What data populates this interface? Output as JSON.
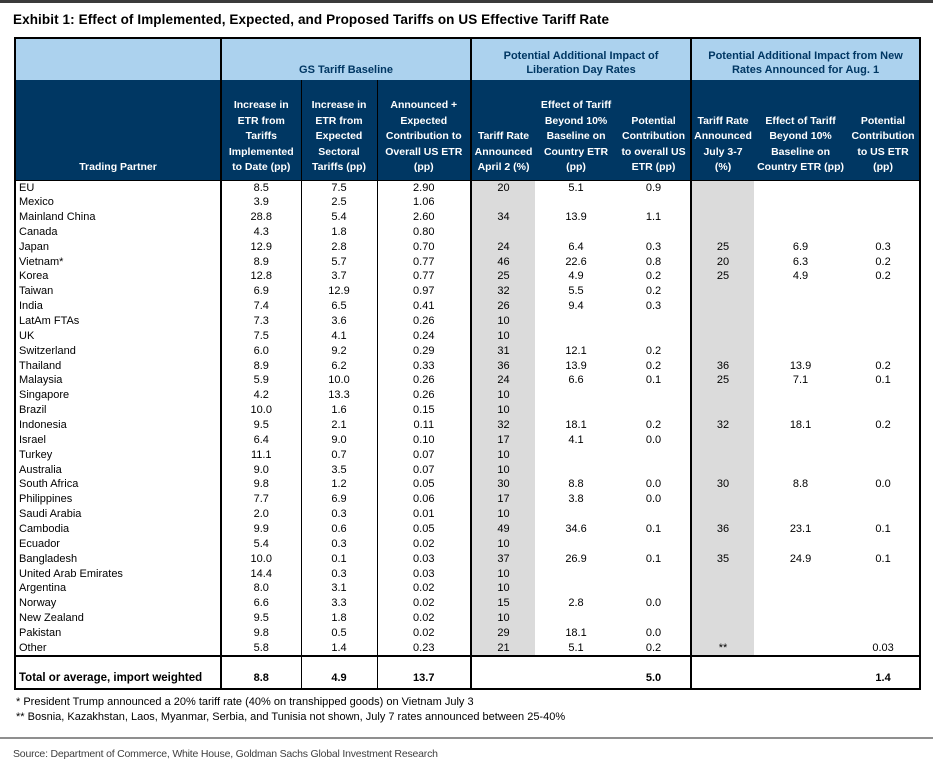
{
  "title": "Exhibit 1: Effect of Implemented, Expected, and Proposed Tariffs on US Effective Tariff Rate",
  "colors": {
    "header_navy": "#003763",
    "header_light_blue": "#acd2ee",
    "shaded_rate_column": "#dbdbdb"
  },
  "chart_data": {
    "type": "table",
    "title": "Exhibit 1: Effect of Implemented, Expected, and Proposed Tariffs on US Effective Tariff Rate",
    "column_groups": [
      "GS Tariff Baseline",
      "Potential Additional Impact of Liberation Day Rates",
      "Potential Additional Impact from New Rates Announced for Aug. 1"
    ],
    "columns": [
      "Trading Partner",
      "Increase in ETR from Tariffs Implemented to Date (pp)",
      "Increase in ETR from Expected Sectoral Tariffs (pp)",
      "Announced + Expected Contribution to Overall US ETR (pp)",
      "Tariff Rate Announced April 2 (%)",
      "Effect of Tariff Beyond 10% Baseline on Country ETR (pp)",
      "Potential Contribution to overall US ETR (pp)",
      "Tariff Rate Announced July 3-7 (%)",
      "Effect of Tariff Beyond 10% Baseline on Country ETR (pp)",
      "Potential Contribution to US ETR (pp)"
    ],
    "rows": [
      [
        "EU",
        "8.5",
        "7.5",
        "2.90",
        "20",
        "5.1",
        "0.9",
        "",
        "",
        ""
      ],
      [
        "Mexico",
        "3.9",
        "2.5",
        "1.06",
        "",
        "",
        "",
        "",
        "",
        ""
      ],
      [
        "Mainland China",
        "28.8",
        "5.4",
        "2.60",
        "34",
        "13.9",
        "1.1",
        "",
        "",
        ""
      ],
      [
        "Canada",
        "4.3",
        "1.8",
        "0.80",
        "",
        "",
        "",
        "",
        "",
        ""
      ],
      [
        "Japan",
        "12.9",
        "2.8",
        "0.70",
        "24",
        "6.4",
        "0.3",
        "25",
        "6.9",
        "0.3"
      ],
      [
        "Vietnam*",
        "8.9",
        "5.7",
        "0.77",
        "46",
        "22.6",
        "0.8",
        "20",
        "6.3",
        "0.2"
      ],
      [
        "Korea",
        "12.8",
        "3.7",
        "0.77",
        "25",
        "4.9",
        "0.2",
        "25",
        "4.9",
        "0.2"
      ],
      [
        "Taiwan",
        "6.9",
        "12.9",
        "0.97",
        "32",
        "5.5",
        "0.2",
        "",
        "",
        ""
      ],
      [
        "India",
        "7.4",
        "6.5",
        "0.41",
        "26",
        "9.4",
        "0.3",
        "",
        "",
        ""
      ],
      [
        "LatAm FTAs",
        "7.3",
        "3.6",
        "0.26",
        "10",
        "",
        "",
        "",
        "",
        ""
      ],
      [
        "UK",
        "7.5",
        "4.1",
        "0.24",
        "10",
        "",
        "",
        "",
        "",
        ""
      ],
      [
        "Switzerland",
        "6.0",
        "9.2",
        "0.29",
        "31",
        "12.1",
        "0.2",
        "",
        "",
        ""
      ],
      [
        "Thailand",
        "8.9",
        "6.2",
        "0.33",
        "36",
        "13.9",
        "0.2",
        "36",
        "13.9",
        "0.2"
      ],
      [
        "Malaysia",
        "5.9",
        "10.0",
        "0.26",
        "24",
        "6.6",
        "0.1",
        "25",
        "7.1",
        "0.1"
      ],
      [
        "Singapore",
        "4.2",
        "13.3",
        "0.26",
        "10",
        "",
        "",
        "",
        "",
        ""
      ],
      [
        "Brazil",
        "10.0",
        "1.6",
        "0.15",
        "10",
        "",
        "",
        "",
        "",
        ""
      ],
      [
        "Indonesia",
        "9.5",
        "2.1",
        "0.11",
        "32",
        "18.1",
        "0.2",
        "32",
        "18.1",
        "0.2"
      ],
      [
        "Israel",
        "6.4",
        "9.0",
        "0.10",
        "17",
        "4.1",
        "0.0",
        "",
        "",
        ""
      ],
      [
        "Turkey",
        "11.1",
        "0.7",
        "0.07",
        "10",
        "",
        "",
        "",
        "",
        ""
      ],
      [
        "Australia",
        "9.0",
        "3.5",
        "0.07",
        "10",
        "",
        "",
        "",
        "",
        ""
      ],
      [
        "South Africa",
        "9.8",
        "1.2",
        "0.05",
        "30",
        "8.8",
        "0.0",
        "30",
        "8.8",
        "0.0"
      ],
      [
        "Philippines",
        "7.7",
        "6.9",
        "0.06",
        "17",
        "3.8",
        "0.0",
        "",
        "",
        ""
      ],
      [
        "Saudi Arabia",
        "2.0",
        "0.3",
        "0.01",
        "10",
        "",
        "",
        "",
        "",
        ""
      ],
      [
        "Cambodia",
        "9.9",
        "0.6",
        "0.05",
        "49",
        "34.6",
        "0.1",
        "36",
        "23.1",
        "0.1"
      ],
      [
        "Ecuador",
        "5.4",
        "0.3",
        "0.02",
        "10",
        "",
        "",
        "",
        "",
        ""
      ],
      [
        "Bangladesh",
        "10.0",
        "0.1",
        "0.03",
        "37",
        "26.9",
        "0.1",
        "35",
        "24.9",
        "0.1"
      ],
      [
        "United Arab Emirates",
        "14.4",
        "0.3",
        "0.03",
        "10",
        "",
        "",
        "",
        "",
        ""
      ],
      [
        "Argentina",
        "8.0",
        "3.1",
        "0.02",
        "10",
        "",
        "",
        "",
        "",
        ""
      ],
      [
        "Norway",
        "6.6",
        "3.3",
        "0.02",
        "15",
        "2.8",
        "0.0",
        "",
        "",
        ""
      ],
      [
        "New Zealand",
        "9.5",
        "1.8",
        "0.02",
        "10",
        "",
        "",
        "",
        "",
        ""
      ],
      [
        "Pakistan",
        "9.8",
        "0.5",
        "0.02",
        "29",
        "18.1",
        "0.0",
        "",
        "",
        ""
      ],
      [
        "Other",
        "5.8",
        "1.4",
        "0.23",
        "21",
        "5.1",
        "0.2",
        "**",
        "",
        "0.03"
      ]
    ],
    "total_row": [
      "Total or average, import weighted",
      "8.8",
      "4.9",
      "13.7",
      "",
      "",
      "5.0",
      "",
      "",
      "1.4"
    ]
  },
  "footnotes": [
    "* President Trump announced a 20% tariff rate (40% on transhipped goods) on Vietnam July 3",
    "** Bosnia, Kazakhstan, Laos, Myanmar, Serbia, and Tunisia not shown, July 7 rates announced between 25-40%"
  ],
  "source": "Source: Department of Commerce, White House, Goldman Sachs Global Investment Research"
}
